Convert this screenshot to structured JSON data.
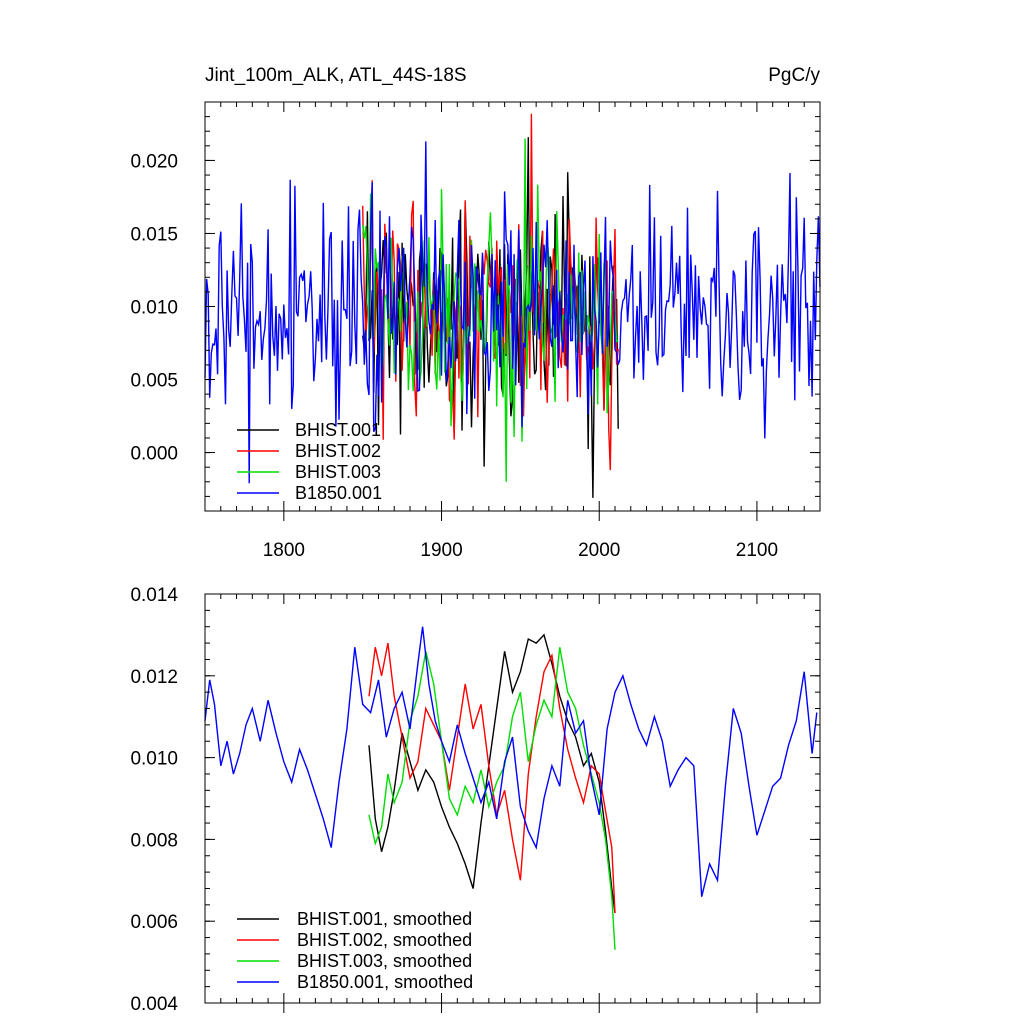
{
  "chart_data": [
    {
      "type": "line",
      "title": "Jint_100m_ALK, ATL_44S-18S",
      "units": "PgC/y",
      "xlim": [
        1750,
        2140
      ],
      "ylim": [
        -0.004,
        0.024
      ],
      "x_ticks": [
        1800,
        1900,
        2000,
        2100
      ],
      "y_ticks": [
        0.0,
        0.005,
        0.01,
        0.015,
        0.02
      ],
      "y_tick_labels": [
        "0.000",
        "0.005",
        "0.010",
        "0.015",
        "0.020"
      ],
      "x_tick_labels": [
        "1800",
        "1900",
        "2000",
        "2100"
      ],
      "legend_position": "bottom-left",
      "series": [
        {
          "name": "BHIST.001",
          "color": "#000000",
          "x_start": 1850,
          "x_end": 2012,
          "mean": 0.0095,
          "amp": 0.0048,
          "seed": 11,
          "peak": [
            1955,
            0.0216
          ],
          "trough": [
            1996,
            -0.0031
          ]
        },
        {
          "name": "BHIST.002",
          "color": "#ff0000",
          "x_start": 1850,
          "x_end": 2012,
          "mean": 0.0098,
          "amp": 0.0046,
          "seed": 23,
          "peak": [
            1957,
            0.0232
          ],
          "trough": [
            2007,
            -0.0012
          ]
        },
        {
          "name": "BHIST.003",
          "color": "#00dd00",
          "x_start": 1850,
          "x_end": 2012,
          "mean": 0.0096,
          "amp": 0.0046,
          "seed": 37,
          "peak": [
            1953,
            0.0215
          ],
          "trough": [
            1941,
            -0.002
          ]
        },
        {
          "name": "B1850.001",
          "color": "#0000ff",
          "x_start": 1750,
          "x_end": 2140,
          "mean": 0.0097,
          "amp": 0.0045,
          "seed": 53,
          "peak": [
            1890,
            0.0213
          ],
          "trough": [
            1778,
            -0.0021
          ]
        }
      ]
    },
    {
      "type": "line",
      "xlim": [
        1750,
        2140
      ],
      "ylim": [
        0.004,
        0.014
      ],
      "x_ticks": [
        1800,
        1900,
        2000,
        2100
      ],
      "y_ticks": [
        0.004,
        0.006,
        0.008,
        0.01,
        0.012,
        0.014
      ],
      "y_tick_labels": [
        "0.004",
        "0.006",
        "0.008",
        "0.010",
        "0.012",
        "0.014"
      ],
      "legend_position": "bottom-left",
      "series": [
        {
          "name": "BHIST.001, smoothed",
          "color": "#000000",
          "x": [
            1854,
            1858,
            1862,
            1866,
            1870,
            1875,
            1880,
            1885,
            1890,
            1895,
            1900,
            1905,
            1910,
            1915,
            1920,
            1925,
            1930,
            1935,
            1940,
            1945,
            1950,
            1955,
            1960,
            1965,
            1970,
            1975,
            1980,
            1985,
            1990,
            1995,
            2000,
            2004,
            2008,
            2010
          ],
          "y": [
            0.0103,
            0.0085,
            0.0077,
            0.0083,
            0.0092,
            0.0106,
            0.0099,
            0.0092,
            0.0097,
            0.0094,
            0.0088,
            0.0083,
            0.0079,
            0.0074,
            0.0068,
            0.0084,
            0.0098,
            0.0112,
            0.0126,
            0.0116,
            0.0121,
            0.0129,
            0.0128,
            0.013,
            0.0123,
            0.0115,
            0.0109,
            0.0105,
            0.0098,
            0.0101,
            0.0094,
            0.0082,
            0.0068,
            0.0062
          ]
        },
        {
          "name": "BHIST.002, smoothed",
          "color": "#ff0000",
          "x": [
            1854,
            1858,
            1862,
            1866,
            1870,
            1875,
            1880,
            1885,
            1890,
            1895,
            1900,
            1905,
            1910,
            1915,
            1920,
            1925,
            1930,
            1935,
            1940,
            1945,
            1950,
            1955,
            1960,
            1965,
            1970,
            1975,
            1980,
            1985,
            1990,
            1995,
            2000,
            2004,
            2008,
            2010
          ],
          "y": [
            0.0115,
            0.0127,
            0.012,
            0.0128,
            0.0115,
            0.0105,
            0.0095,
            0.0099,
            0.0112,
            0.0108,
            0.0104,
            0.0092,
            0.0105,
            0.0118,
            0.0107,
            0.0113,
            0.0098,
            0.0086,
            0.0092,
            0.008,
            0.007,
            0.0096,
            0.011,
            0.0121,
            0.0125,
            0.0112,
            0.0102,
            0.0095,
            0.0089,
            0.0098,
            0.0096,
            0.0087,
            0.0078,
            0.0062
          ]
        },
        {
          "name": "BHIST.003, smoothed",
          "color": "#00dd00",
          "x": [
            1854,
            1858,
            1862,
            1866,
            1870,
            1875,
            1880,
            1885,
            1890,
            1895,
            1900,
            1905,
            1910,
            1915,
            1920,
            1925,
            1930,
            1935,
            1940,
            1945,
            1950,
            1955,
            1960,
            1965,
            1970,
            1975,
            1980,
            1985,
            1990,
            1995,
            2000,
            2004,
            2008,
            2010
          ],
          "y": [
            0.0086,
            0.0079,
            0.0083,
            0.0096,
            0.0089,
            0.0094,
            0.0109,
            0.0115,
            0.0126,
            0.0118,
            0.0104,
            0.009,
            0.0086,
            0.0093,
            0.0089,
            0.0097,
            0.0088,
            0.0094,
            0.0098,
            0.011,
            0.0116,
            0.0099,
            0.0108,
            0.0114,
            0.011,
            0.0127,
            0.0116,
            0.0112,
            0.0103,
            0.0096,
            0.0089,
            0.008,
            0.0066,
            0.0053
          ]
        },
        {
          "name": "B1850.001, smoothed",
          "color": "#0000ff",
          "x": [
            1750,
            1753,
            1756,
            1760,
            1764,
            1768,
            1772,
            1776,
            1780,
            1785,
            1790,
            1795,
            1800,
            1805,
            1810,
            1815,
            1820,
            1825,
            1830,
            1835,
            1840,
            1845,
            1850,
            1855,
            1860,
            1865,
            1870,
            1875,
            1880,
            1885,
            1888,
            1892,
            1896,
            1900,
            1905,
            1910,
            1915,
            1920,
            1925,
            1930,
            1935,
            1940,
            1945,
            1950,
            1955,
            1960,
            1965,
            1970,
            1975,
            1980,
            1985,
            1990,
            1995,
            2000,
            2005,
            2010,
            2015,
            2020,
            2025,
            2030,
            2035,
            2040,
            2045,
            2050,
            2055,
            2060,
            2065,
            2070,
            2075,
            2080,
            2085,
            2090,
            2095,
            2100,
            2105,
            2110,
            2115,
            2120,
            2125,
            2130,
            2135,
            2138
          ],
          "y": [
            0.0109,
            0.0119,
            0.0113,
            0.0098,
            0.0104,
            0.0096,
            0.0101,
            0.0108,
            0.0112,
            0.0104,
            0.0114,
            0.0106,
            0.0099,
            0.0094,
            0.0102,
            0.0097,
            0.0091,
            0.0085,
            0.0078,
            0.0094,
            0.0107,
            0.0127,
            0.0113,
            0.0111,
            0.0119,
            0.0105,
            0.0112,
            0.0116,
            0.0107,
            0.0123,
            0.0132,
            0.0118,
            0.0109,
            0.0104,
            0.0099,
            0.0108,
            0.0101,
            0.0095,
            0.0089,
            0.0094,
            0.0085,
            0.0099,
            0.0105,
            0.0088,
            0.0082,
            0.0078,
            0.009,
            0.0098,
            0.0093,
            0.0114,
            0.0106,
            0.0109,
            0.0095,
            0.0086,
            0.0107,
            0.0116,
            0.012,
            0.0113,
            0.0107,
            0.0103,
            0.011,
            0.0104,
            0.0093,
            0.0097,
            0.01,
            0.0098,
            0.0066,
            0.0074,
            0.007,
            0.0093,
            0.0112,
            0.0106,
            0.0093,
            0.0081,
            0.0087,
            0.0093,
            0.0095,
            0.0103,
            0.0109,
            0.0121,
            0.0101,
            0.0111
          ]
        }
      ]
    }
  ]
}
